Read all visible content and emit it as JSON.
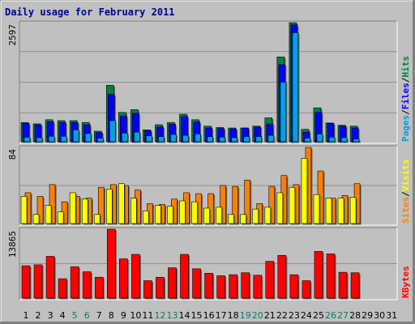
{
  "chart_data": {
    "title": "Daily usage for February 2011",
    "days": [
      "1",
      "2",
      "3",
      "4",
      "5",
      "6",
      "7",
      "8",
      "9",
      "10",
      "11",
      "12",
      "13",
      "14",
      "15",
      "16",
      "17",
      "18",
      "19",
      "20",
      "21",
      "22",
      "23",
      "24",
      "25",
      "26",
      "27",
      "28",
      "29",
      "30",
      "31"
    ],
    "weekend_days": [
      "5",
      "6",
      "12",
      "13",
      "19",
      "20",
      "26",
      "27"
    ],
    "panels": [
      {
        "type": "bar",
        "ymax_label": "2597",
        "ylim": [
          0,
          2597
        ],
        "series": [
          {
            "name": "Hits",
            "color": "#008040",
            "values": [
              420,
              390,
              480,
              460,
              460,
              420,
              230,
              1230,
              640,
              700,
              260,
              370,
              420,
              600,
              480,
              340,
              310,
              300,
              300,
              340,
              520,
              1850,
              2597,
              270,
              740,
              410,
              360,
              340,
              0,
              0,
              0
            ]
          },
          {
            "name": "Files",
            "color": "#0000ff",
            "values": [
              400,
              370,
              440,
              420,
              420,
              370,
              200,
              1030,
              560,
              620,
              240,
              320,
              380,
              550,
              430,
              300,
              290,
              280,
              300,
              320,
              390,
              1680,
              2550,
              210,
              640,
              400,
              340,
              300,
              0,
              0,
              0
            ]
          },
          {
            "name": "Pages",
            "color": "#00a0e0",
            "values": [
              100,
              90,
              120,
              120,
              260,
              180,
              80,
              460,
              190,
              210,
              130,
              110,
              160,
              140,
              170,
              110,
              100,
              90,
              110,
              110,
              140,
              1300,
              2380,
              80,
              170,
              100,
              90,
              60,
              0,
              0,
              0
            ]
          }
        ],
        "right_labels": [
          "Pages",
          "/",
          "Files",
          "/",
          "Hits"
        ]
      },
      {
        "type": "bar",
        "ymax_label": "84",
        "ylim": [
          0,
          84
        ],
        "series": [
          {
            "name": "Visits",
            "color": "#ffff00",
            "values": [
              30,
              10,
              20,
              13,
              34,
              27,
              10,
              38,
              44,
              28,
              14,
              20,
              19,
              25,
              24,
              17,
              18,
              10,
              10,
              16,
              18,
              34,
              40,
              72,
              32,
              28,
              28,
              29,
              0,
              0,
              0
            ]
          },
          {
            "name": "Sites",
            "color": "#ff8000",
            "values": [
              34,
              30,
              43,
              24,
              30,
              28,
              40,
              43,
              42,
              37,
              22,
              21,
              27,
              34,
              33,
              33,
              42,
              41,
              48,
              22,
              41,
              53,
              43,
              84,
              58,
              28,
              31,
              44,
              0,
              0,
              0
            ]
          }
        ],
        "right_labels": [
          "Sites",
          "/",
          "Visits"
        ]
      },
      {
        "type": "bar",
        "ymax_label": "13865",
        "ylim": [
          0,
          13865
        ],
        "series": [
          {
            "name": "KBytes",
            "color": "#ff0000",
            "values": [
              6500,
              6700,
              8400,
              3900,
              6300,
              5300,
              4200,
              13865,
              7900,
              8800,
              3500,
              4200,
              6100,
              8800,
              5900,
              5000,
              4500,
              4700,
              5100,
              4600,
              7400,
              8600,
              4700,
              3500,
              9400,
              8900,
              5200,
              5100,
              0,
              0,
              0
            ]
          }
        ],
        "right_labels": [
          "KBytes"
        ]
      }
    ]
  }
}
